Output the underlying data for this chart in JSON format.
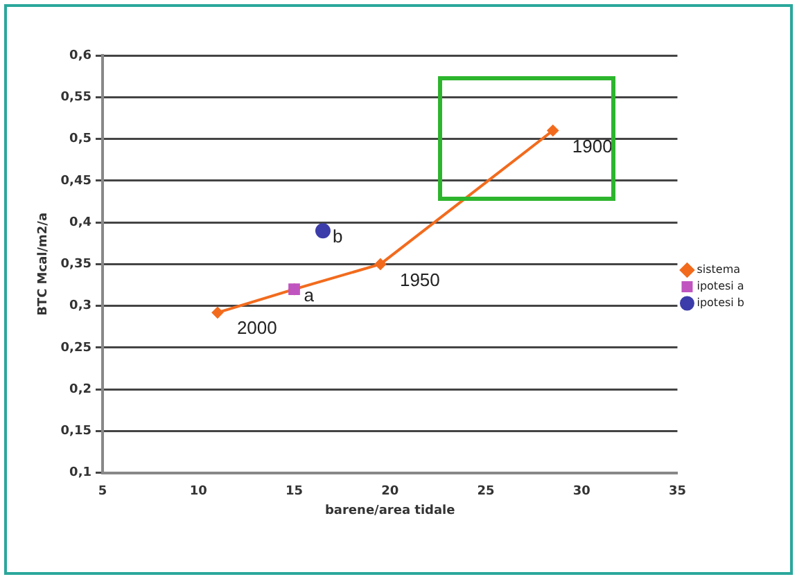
{
  "chart_data": {
    "type": "line",
    "xlabel": "barene/area tidale",
    "ylabel": "BTC Mcal/m2/a",
    "xlim": [
      5,
      35
    ],
    "xticks": [
      5,
      10,
      15,
      20,
      25,
      30,
      35
    ],
    "ylim": [
      0.1,
      0.6
    ],
    "yticks": [
      {
        "value": 0.1,
        "label": "0,1"
      },
      {
        "value": 0.15,
        "label": "0,15"
      },
      {
        "value": 0.2,
        "label": "0,2"
      },
      {
        "value": 0.25,
        "label": "0,25"
      },
      {
        "value": 0.3,
        "label": "0,3"
      },
      {
        "value": 0.35,
        "label": "0,35"
      },
      {
        "value": 0.4,
        "label": "0,4"
      },
      {
        "value": 0.45,
        "label": "0,45"
      },
      {
        "value": 0.5,
        "label": "0,5"
      },
      {
        "value": 0.55,
        "label": "0,55"
      },
      {
        "value": 0.6,
        "label": "0,6"
      }
    ],
    "grid": "y",
    "legend": "right",
    "series": [
      {
        "name": "sistema",
        "type": "line",
        "color": "#f26b1d",
        "marker": "diamond",
        "x": [
          11,
          15,
          19.5,
          28.5
        ],
        "values": [
          0.292,
          0.32,
          0.35,
          0.51
        ]
      },
      {
        "name": "ipotesi a",
        "type": "scatter",
        "color": "#c055c0",
        "marker": "square",
        "x": [
          15
        ],
        "values": [
          0.32
        ]
      },
      {
        "name": "ipotesi b",
        "type": "scatter",
        "color": "#3c3caa",
        "marker": "circle",
        "x": [
          16.5
        ],
        "values": [
          0.39
        ]
      }
    ],
    "annotations": [
      {
        "text": "2000",
        "x": 11,
        "y": 0.292
      },
      {
        "text": "a",
        "x": 15,
        "y": 0.32
      },
      {
        "text": "b",
        "x": 16.5,
        "y": 0.39
      },
      {
        "text": "1950",
        "x": 19.5,
        "y": 0.35
      },
      {
        "text": "1900",
        "x": 28.5,
        "y": 0.51
      }
    ]
  }
}
